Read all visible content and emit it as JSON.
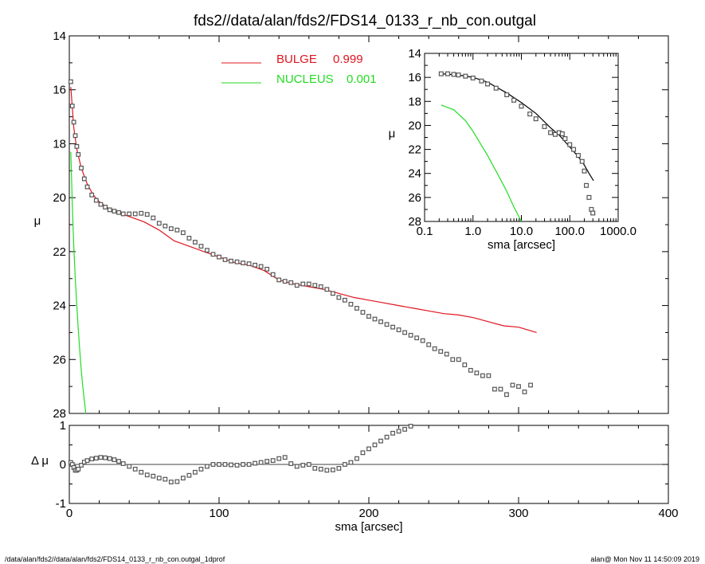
{
  "title": "fds2//data/alan/fds2/FDS14_0133_r_nb_con.outgal",
  "footer_left": "/data/alan/fds2//data/alan/fds2/FDS14_0133_r_nb_con.outgal_1dprof",
  "footer_right": "alan@  Mon Nov 11 14:50:09 2019",
  "colors": {
    "bulge": "#e0141e",
    "nucleus": "#22dd22",
    "data": "#555555",
    "axis": "#000000"
  },
  "legend": [
    {
      "name": "BULGE",
      "value": "0.999",
      "color": "#e0141e"
    },
    {
      "name": "NUCLEUS",
      "value": "0.001",
      "color": "#22dd22"
    }
  ],
  "chart_data": [
    {
      "type": "scatter",
      "name": "main profile",
      "xlabel": "",
      "ylabel": "μ",
      "xlim": [
        0,
        400
      ],
      "ylim": [
        28,
        14
      ],
      "y_inverted": true,
      "yticks": [
        "14",
        "16",
        "18",
        "20",
        "22",
        "24",
        "26",
        "28"
      ],
      "series": [
        {
          "name": "BULGE 0.999",
          "kind": "line",
          "color": "#e0141e",
          "x": [
            1,
            3,
            5,
            8,
            12,
            16,
            20,
            25,
            30,
            35,
            40,
            45,
            50,
            55,
            60,
            65,
            70,
            80,
            90,
            100,
            110,
            120,
            130,
            140,
            150,
            160,
            170,
            180,
            190,
            200,
            210,
            220,
            230,
            240,
            250,
            260,
            270,
            280,
            290,
            300,
            312
          ],
          "y": [
            15.9,
            17.4,
            18.2,
            18.9,
            19.5,
            19.9,
            20.15,
            20.35,
            20.5,
            20.6,
            20.7,
            20.8,
            20.9,
            21.05,
            21.2,
            21.4,
            21.6,
            21.8,
            22.0,
            22.2,
            22.4,
            22.5,
            22.7,
            23.05,
            23.2,
            23.3,
            23.4,
            23.55,
            23.7,
            23.8,
            23.9,
            24.0,
            24.1,
            24.2,
            24.3,
            24.35,
            24.45,
            24.6,
            24.75,
            24.8,
            25.0
          ]
        },
        {
          "name": "NUCLEUS 0.001",
          "kind": "line",
          "color": "#22dd22",
          "x": [
            1,
            2,
            3,
            4,
            5,
            6,
            7,
            8,
            9,
            10,
            11
          ],
          "y": [
            18.3,
            20.3,
            21.8,
            23.0,
            24.0,
            24.9,
            25.7,
            26.4,
            27.0,
            27.5,
            28.0
          ]
        },
        {
          "name": "data",
          "kind": "points",
          "color": "#555555",
          "x": [
            1,
            2,
            3,
            4,
            5,
            6,
            8,
            10,
            12,
            15,
            18,
            21,
            24,
            27,
            30,
            33,
            36,
            40,
            44,
            48,
            52,
            56,
            60,
            64,
            68,
            72,
            76,
            80,
            84,
            88,
            92,
            96,
            100,
            104,
            108,
            112,
            116,
            120,
            124,
            128,
            132,
            136,
            140,
            144,
            148,
            152,
            156,
            160,
            164,
            168,
            172,
            176,
            180,
            184,
            188,
            192,
            196,
            200,
            204,
            208,
            212,
            216,
            220,
            224,
            228,
            232,
            236,
            240,
            244,
            248,
            252,
            256,
            260,
            264,
            268,
            272,
            276,
            280,
            284,
            288,
            292,
            296,
            300,
            304,
            308
          ],
          "y": [
            15.7,
            16.6,
            17.2,
            17.7,
            18.1,
            18.4,
            18.9,
            19.3,
            19.6,
            19.9,
            20.1,
            20.25,
            20.35,
            20.45,
            20.5,
            20.55,
            20.6,
            20.6,
            20.6,
            20.58,
            20.62,
            20.75,
            20.95,
            21.05,
            21.15,
            21.2,
            21.3,
            21.5,
            21.65,
            21.8,
            21.95,
            22.1,
            22.2,
            22.3,
            22.35,
            22.38,
            22.42,
            22.45,
            22.5,
            22.55,
            22.65,
            22.85,
            23.05,
            23.1,
            23.15,
            23.25,
            23.2,
            23.2,
            23.25,
            23.3,
            23.4,
            23.55,
            23.7,
            23.8,
            23.95,
            24.1,
            24.25,
            24.4,
            24.5,
            24.6,
            24.7,
            24.8,
            24.9,
            25.0,
            25.1,
            25.2,
            25.3,
            25.45,
            25.6,
            25.7,
            25.8,
            26.0,
            26.0,
            26.2,
            26.4,
            26.5,
            26.6,
            26.6,
            27.1,
            27.1,
            27.3,
            26.95,
            27.0,
            27.2,
            26.95
          ]
        }
      ]
    },
    {
      "type": "scatter",
      "name": "residuals",
      "xlabel": "sma [arcsec]",
      "ylabel": "Δ μ",
      "xlim": [
        0,
        400
      ],
      "ylim": [
        -1,
        1
      ],
      "xticks": [
        "0",
        "100",
        "200",
        "300",
        "400"
      ],
      "yticks": [
        "-1",
        "0",
        "1"
      ],
      "zero_line": true,
      "series": [
        {
          "name": "residual",
          "kind": "points",
          "color": "#555555",
          "x": [
            1,
            2,
            3,
            4,
            5,
            6,
            8,
            10,
            12,
            15,
            18,
            21,
            24,
            27,
            30,
            33,
            36,
            40,
            44,
            48,
            52,
            56,
            60,
            64,
            68,
            72,
            76,
            80,
            84,
            88,
            92,
            96,
            100,
            104,
            108,
            112,
            116,
            120,
            124,
            128,
            132,
            136,
            140,
            144,
            148,
            152,
            156,
            160,
            164,
            168,
            172,
            176,
            180,
            184,
            188,
            192,
            196,
            200,
            204,
            208,
            212,
            216,
            220,
            224,
            228
          ],
          "y": [
            0.05,
            0.0,
            -0.08,
            -0.15,
            -0.15,
            -0.12,
            -0.02,
            0.06,
            0.1,
            0.14,
            0.16,
            0.18,
            0.17,
            0.15,
            0.12,
            0.08,
            0.02,
            -0.05,
            -0.12,
            -0.2,
            -0.27,
            -0.3,
            -0.35,
            -0.38,
            -0.45,
            -0.44,
            -0.35,
            -0.28,
            -0.2,
            -0.12,
            -0.05,
            0.0,
            0.0,
            0.0,
            -0.01,
            -0.02,
            0.0,
            0.0,
            0.03,
            0.05,
            0.08,
            0.1,
            0.15,
            0.18,
            0.02,
            -0.05,
            -0.02,
            0.0,
            -0.1,
            -0.12,
            -0.15,
            -0.14,
            -0.1,
            0.0,
            0.05,
            0.15,
            0.3,
            0.4,
            0.5,
            0.6,
            0.7,
            0.8,
            0.85,
            0.9,
            0.98
          ]
        }
      ]
    },
    {
      "type": "scatter",
      "name": "inset",
      "xlabel": "sma [arcsec]",
      "ylabel": "μ",
      "xscale": "log",
      "xlim": [
        0.1,
        1000
      ],
      "ylim": [
        28,
        14
      ],
      "y_inverted": true,
      "xticks": [
        "0.1",
        "1.0",
        "10.0",
        "100.0",
        "1000.0"
      ],
      "yticks": [
        "14",
        "16",
        "18",
        "20",
        "22",
        "24",
        "26",
        "28"
      ],
      "series": [
        {
          "name": "NUCLEUS",
          "kind": "line",
          "color": "#22dd22",
          "x": [
            0.22,
            0.4,
            0.7,
            1.0,
            2.0,
            3.0,
            5.0,
            7.0,
            10.0
          ],
          "y": [
            18.3,
            18.7,
            19.6,
            20.5,
            22.5,
            23.8,
            25.5,
            26.8,
            28.0
          ]
        },
        {
          "name": "model",
          "kind": "line",
          "color": "#000000",
          "x": [
            0.22,
            0.5,
            1,
            2,
            5,
            10,
            20,
            40,
            60,
            100,
            150,
            200,
            250,
            310
          ],
          "y": [
            15.7,
            15.8,
            16.0,
            16.4,
            17.3,
            18.1,
            19.0,
            20.2,
            20.8,
            21.8,
            22.6,
            23.3,
            24.0,
            24.6
          ]
        },
        {
          "name": "data",
          "kind": "points",
          "color": "#555555",
          "x": [
            0.22,
            0.3,
            0.4,
            0.5,
            0.7,
            1.0,
            1.5,
            2,
            3,
            5,
            7,
            10,
            15,
            20,
            30,
            40,
            50,
            60,
            70,
            80,
            100,
            120,
            150,
            180,
            200,
            220,
            250,
            280,
            300
          ],
          "y": [
            15.7,
            15.7,
            15.75,
            15.8,
            15.9,
            16.05,
            16.3,
            16.55,
            16.9,
            17.45,
            17.9,
            18.4,
            19.05,
            19.45,
            20.1,
            20.6,
            20.75,
            20.6,
            20.7,
            21.1,
            21.6,
            22.0,
            22.5,
            23.0,
            23.8,
            25.0,
            26.0,
            27.0,
            27.3
          ]
        }
      ]
    }
  ]
}
